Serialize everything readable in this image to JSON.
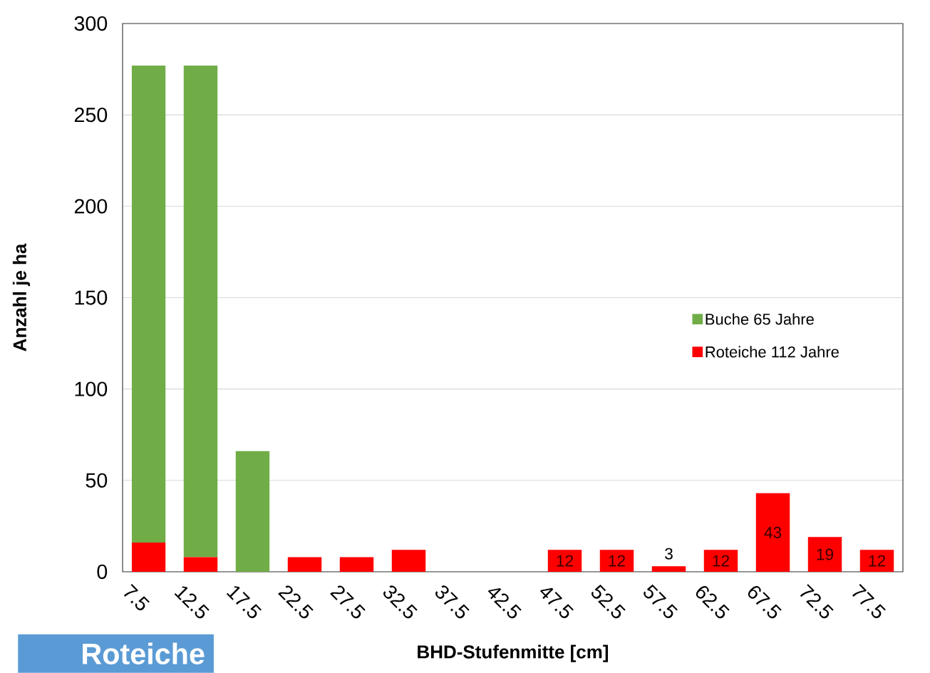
{
  "chart_data": {
    "type": "bar",
    "stacked": true,
    "xlabel": "BHD-Stufenmitte [cm]",
    "ylabel": "Anzahl je ha",
    "categories": [
      "7.5",
      "12.5",
      "17.5",
      "22.5",
      "27.5",
      "32.5",
      "37.5",
      "42.5",
      "47.5",
      "52.5",
      "57.5",
      "62.5",
      "67.5",
      "72.5",
      "77.5"
    ],
    "series": [
      {
        "name": "Roteiche 112 Jahre",
        "color": "#ff0000",
        "values": [
          16,
          8,
          0,
          8,
          8,
          12,
          0,
          0,
          12,
          12,
          3,
          12,
          43,
          19,
          12
        ],
        "value_labels": [
          null,
          null,
          null,
          null,
          null,
          null,
          null,
          null,
          "12",
          "12",
          "3",
          "12",
          "43",
          "19",
          "12"
        ]
      },
      {
        "name": "Buche 65 Jahre",
        "color": "#70ad47",
        "values": [
          261,
          269,
          66,
          0,
          0,
          0,
          0,
          0,
          0,
          0,
          0,
          0,
          0,
          0,
          0
        ]
      }
    ],
    "ylim": [
      0,
      300
    ],
    "yticks": [
      0,
      50,
      100,
      150,
      200,
      250,
      300
    ],
    "grid": "y",
    "legend": "right",
    "annotations": [
      "Roteiche"
    ]
  }
}
